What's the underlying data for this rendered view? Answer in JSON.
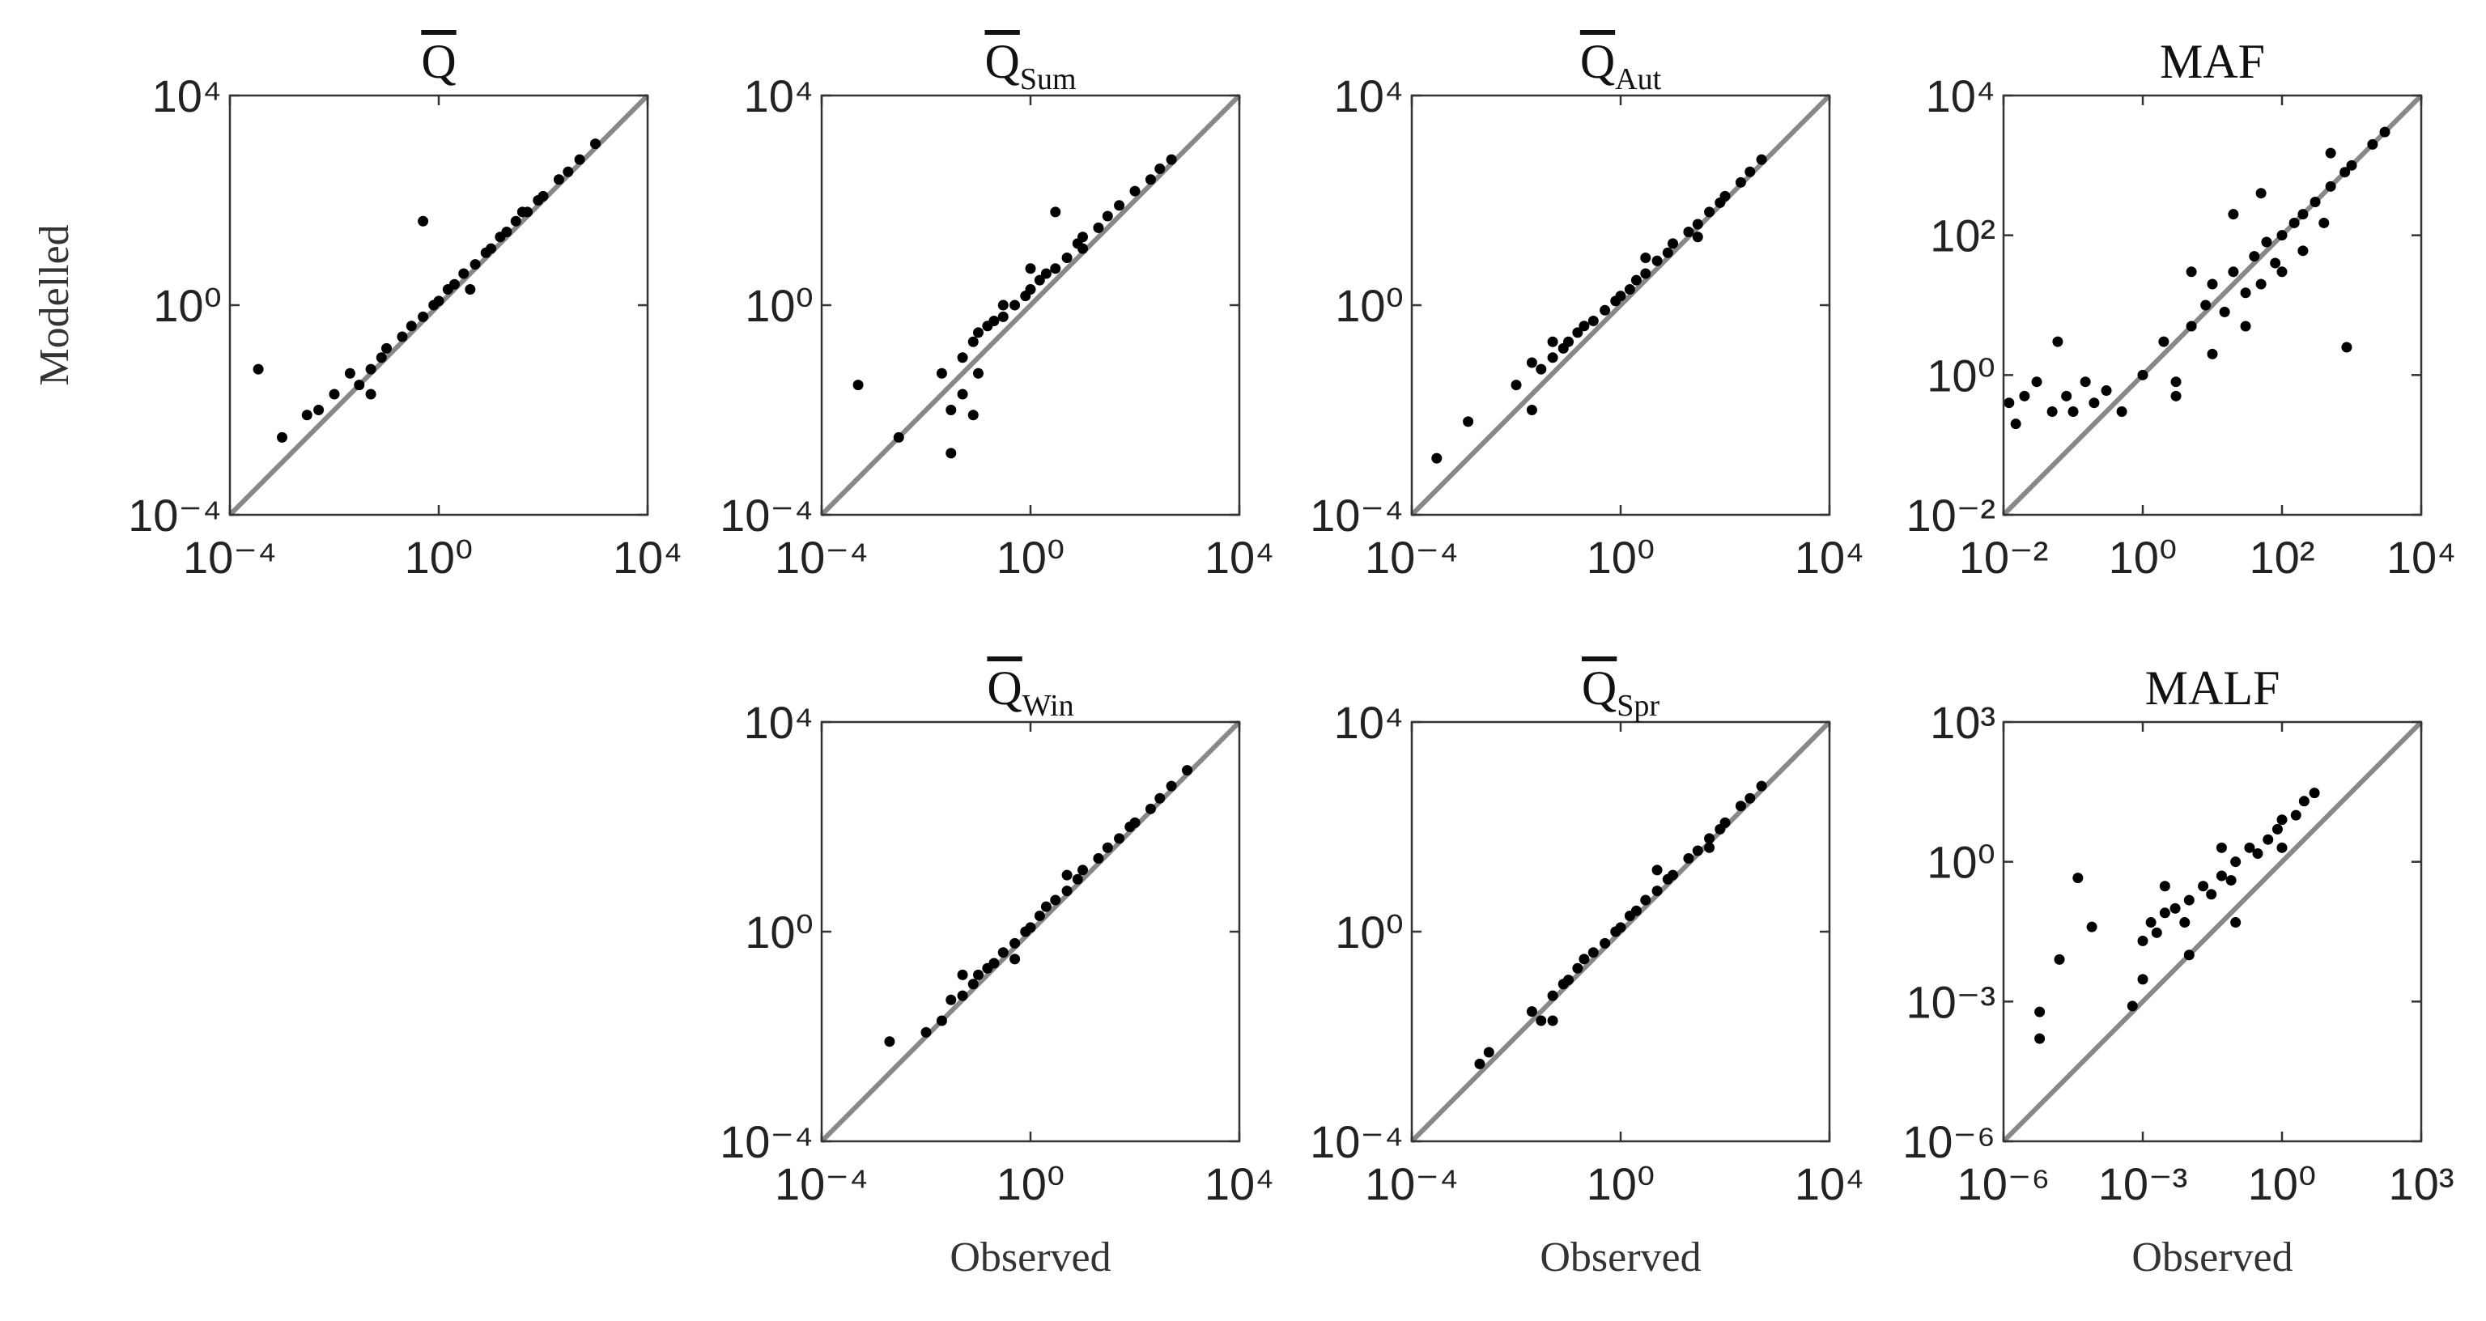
{
  "chart_data": [
    {
      "type": "scatter",
      "title": "Q",
      "overline": true,
      "ylabel": "Modelled",
      "log_scale": true,
      "color": "#000000",
      "line_color": "#888888",
      "xlim": [
        0.0001,
        10000.0
      ],
      "ylim": [
        0.0001,
        10000.0
      ],
      "xticks": [
        {
          "value": 0.0001,
          "label": "10⁻⁴"
        },
        {
          "value": 1,
          "label": "10⁰"
        },
        {
          "value": 10000.0,
          "label": "10⁴"
        }
      ],
      "yticks": [
        {
          "value": 0.0001,
          "label": "10⁻⁴"
        },
        {
          "value": 1,
          "label": "10⁰"
        },
        {
          "value": 10000.0,
          "label": "10⁴"
        }
      ],
      "x": [
        0.00035,
        0.001,
        0.003,
        0.005,
        0.01,
        0.02,
        0.03,
        0.05,
        0.08,
        0.1,
        0.2,
        0.3,
        0.5,
        0.8,
        1,
        1.5,
        2,
        3,
        5,
        8,
        10,
        15,
        20,
        30,
        50,
        80,
        100,
        200,
        300,
        500,
        1000,
        0.5,
        0.05,
        4,
        40
      ],
      "values": [
        0.06,
        0.003,
        0.008,
        0.01,
        0.02,
        0.05,
        0.03,
        0.06,
        0.1,
        0.15,
        0.25,
        0.4,
        0.6,
        1,
        1.2,
        2,
        2.5,
        4,
        6,
        10,
        12,
        20,
        25,
        40,
        60,
        100,
        120,
        250,
        350,
        600,
        1200,
        40,
        0.02,
        2,
        60
      ]
    },
    {
      "type": "scatter",
      "title": "Q",
      "title_subscript": "Sum",
      "overline": true,
      "log_scale": true,
      "color": "#000000",
      "line_color": "#888888",
      "xlim": [
        0.0001,
        10000.0
      ],
      "ylim": [
        0.0001,
        10000.0
      ],
      "xticks": [
        {
          "value": 0.0001,
          "label": "10⁻⁴"
        },
        {
          "value": 1,
          "label": "10⁰"
        },
        {
          "value": 10000.0,
          "label": "10⁴"
        }
      ],
      "yticks": [
        {
          "value": 0.0001,
          "label": "10⁻⁴"
        },
        {
          "value": 1,
          "label": "10⁰"
        },
        {
          "value": 10000.0,
          "label": "10⁴"
        }
      ],
      "x": [
        0.0005,
        0.003,
        0.02,
        0.03,
        0.05,
        0.05,
        0.08,
        0.1,
        0.1,
        0.15,
        0.2,
        0.3,
        0.3,
        0.5,
        0.8,
        1,
        1.5,
        2,
        3,
        5,
        8,
        10,
        20,
        30,
        50,
        100,
        200,
        300,
        500,
        3,
        0.03,
        0.08,
        1,
        10
      ],
      "values": [
        0.03,
        0.003,
        0.05,
        0.01,
        0.1,
        0.02,
        0.2,
        0.3,
        0.05,
        0.4,
        0.5,
        0.6,
        1,
        1,
        1.5,
        2,
        3,
        4,
        5,
        8,
        15,
        20,
        30,
        50,
        80,
        150,
        250,
        400,
        600,
        60,
        0.0015,
        0.008,
        5,
        12
      ]
    },
    {
      "type": "scatter",
      "title": "Q",
      "title_subscript": "Aut",
      "overline": true,
      "log_scale": true,
      "color": "#000000",
      "line_color": "#888888",
      "xlim": [
        0.0001,
        10000.0
      ],
      "ylim": [
        0.0001,
        10000.0
      ],
      "xticks": [
        {
          "value": 0.0001,
          "label": "10⁻⁴"
        },
        {
          "value": 1,
          "label": "10⁰"
        },
        {
          "value": 10000.0,
          "label": "10⁴"
        }
      ],
      "yticks": [
        {
          "value": 0.0001,
          "label": "10⁻⁴"
        },
        {
          "value": 1,
          "label": "10⁰"
        },
        {
          "value": 10000.0,
          "label": "10⁴"
        }
      ],
      "x": [
        0.0003,
        0.0012,
        0.01,
        0.02,
        0.03,
        0.05,
        0.08,
        0.1,
        0.15,
        0.2,
        0.3,
        0.5,
        0.8,
        1,
        1.5,
        2,
        3,
        5,
        8,
        10,
        20,
        30,
        50,
        80,
        100,
        200,
        300,
        500,
        0.02,
        0.05,
        3,
        30
      ],
      "values": [
        0.0012,
        0.006,
        0.03,
        0.08,
        0.06,
        0.1,
        0.15,
        0.2,
        0.3,
        0.4,
        0.5,
        0.8,
        1.2,
        1.5,
        2,
        3,
        4,
        7,
        10,
        15,
        25,
        35,
        60,
        90,
        120,
        220,
        350,
        600,
        0.01,
        0.2,
        8,
        20
      ]
    },
    {
      "type": "scatter",
      "title": "MAF",
      "overline": false,
      "log_scale": true,
      "color": "#000000",
      "line_color": "#888888",
      "xlim": [
        0.01,
        10000.0
      ],
      "ylim": [
        0.01,
        10000.0
      ],
      "xticks": [
        {
          "value": 0.01,
          "label": "10⁻²"
        },
        {
          "value": 1,
          "label": "10⁰"
        },
        {
          "value": 100,
          "label": "10²"
        },
        {
          "value": 10000.0,
          "label": "10⁴"
        }
      ],
      "yticks": [
        {
          "value": 0.01,
          "label": "10⁻²"
        },
        {
          "value": 1,
          "label": "10⁰"
        },
        {
          "value": 100,
          "label": "10²"
        },
        {
          "value": 10000.0,
          "label": "10⁴"
        }
      ],
      "x": [
        0.012,
        0.015,
        0.02,
        0.03,
        0.05,
        0.08,
        0.1,
        0.15,
        0.2,
        0.3,
        0.5,
        1,
        2,
        3,
        5,
        8,
        10,
        15,
        20,
        30,
        40,
        50,
        60,
        80,
        100,
        100,
        150,
        200,
        300,
        400,
        500,
        800,
        1000,
        2000,
        3000,
        850,
        5,
        20,
        50,
        200,
        30,
        10,
        3,
        0.06,
        500
      ],
      "values": [
        0.4,
        0.2,
        0.5,
        0.8,
        0.3,
        0.5,
        0.3,
        0.8,
        0.4,
        0.6,
        0.3,
        1,
        3,
        0.8,
        5,
        10,
        20,
        8,
        30,
        15,
        50,
        20,
        80,
        40,
        100,
        30,
        150,
        200,
        300,
        150,
        500,
        800,
        1000,
        2000,
        3000,
        2.5,
        30,
        200,
        400,
        60,
        5,
        2,
        0.5,
        3,
        1500
      ]
    },
    {
      "type": "scatter",
      "title": "Q",
      "title_subscript": "Win",
      "overline": true,
      "xlabel": "Observed",
      "log_scale": true,
      "color": "#000000",
      "line_color": "#888888",
      "xlim": [
        0.0001,
        10000.0
      ],
      "ylim": [
        0.0001,
        10000.0
      ],
      "xticks": [
        {
          "value": 0.0001,
          "label": "10⁻⁴"
        },
        {
          "value": 1,
          "label": "10⁰"
        },
        {
          "value": 10000.0,
          "label": "10⁴"
        }
      ],
      "yticks": [
        {
          "value": 0.0001,
          "label": "10⁻⁴"
        },
        {
          "value": 1,
          "label": "10⁰"
        },
        {
          "value": 10000.0,
          "label": "10⁴"
        }
      ],
      "x": [
        0.002,
        0.01,
        0.02,
        0.03,
        0.05,
        0.08,
        0.1,
        0.15,
        0.2,
        0.3,
        0.5,
        0.8,
        1,
        1.5,
        2,
        3,
        5,
        8,
        10,
        20,
        30,
        50,
        80,
        100,
        200,
        300,
        500,
        1000,
        0.05,
        0.5,
        5
      ],
      "values": [
        0.008,
        0.012,
        0.02,
        0.05,
        0.06,
        0.1,
        0.15,
        0.2,
        0.25,
        0.4,
        0.6,
        1,
        1.2,
        2,
        3,
        4,
        6,
        10,
        15,
        25,
        40,
        60,
        100,
        120,
        220,
        350,
        600,
        1200,
        0.15,
        0.3,
        12
      ]
    },
    {
      "type": "scatter",
      "title": "Q",
      "title_subscript": "Spr",
      "overline": true,
      "xlabel": "Observed",
      "log_scale": true,
      "color": "#000000",
      "line_color": "#888888",
      "xlim": [
        0.0001,
        10000.0
      ],
      "ylim": [
        0.0001,
        10000.0
      ],
      "xticks": [
        {
          "value": 0.0001,
          "label": "10⁻⁴"
        },
        {
          "value": 1,
          "label": "10⁰"
        },
        {
          "value": 10000.0,
          "label": "10⁴"
        }
      ],
      "yticks": [
        {
          "value": 0.0001,
          "label": "10⁻⁴"
        },
        {
          "value": 1,
          "label": "10⁰"
        },
        {
          "value": 10000.0,
          "label": "10⁴"
        }
      ],
      "x": [
        0.002,
        0.003,
        0.02,
        0.03,
        0.05,
        0.08,
        0.1,
        0.15,
        0.2,
        0.3,
        0.5,
        0.8,
        1,
        1.5,
        2,
        3,
        5,
        8,
        10,
        20,
        30,
        50,
        80,
        100,
        200,
        300,
        500,
        0.05,
        5,
        50
      ],
      "values": [
        0.003,
        0.005,
        0.03,
        0.02,
        0.06,
        0.1,
        0.12,
        0.2,
        0.3,
        0.4,
        0.6,
        1,
        1.2,
        2,
        2.5,
        4,
        6,
        10,
        12,
        25,
        35,
        60,
        90,
        120,
        250,
        350,
        600,
        0.02,
        15,
        40
      ]
    },
    {
      "type": "scatter",
      "title": "MALF",
      "overline": false,
      "xlabel": "Observed",
      "log_scale": true,
      "color": "#000000",
      "line_color": "#888888",
      "xlim": [
        1e-06,
        1000.0
      ],
      "ylim": [
        1e-06,
        1000.0
      ],
      "xticks": [
        {
          "value": 1e-06,
          "label": "10⁻⁶"
        },
        {
          "value": 0.001,
          "label": "10⁻³"
        },
        {
          "value": 1,
          "label": "10⁰"
        },
        {
          "value": 1000.0,
          "label": "10³"
        }
      ],
      "yticks": [
        {
          "value": 1e-06,
          "label": "10⁻⁶"
        },
        {
          "value": 0.001,
          "label": "10⁻³"
        },
        {
          "value": 1,
          "label": "10⁰"
        },
        {
          "value": 1000.0,
          "label": "10³"
        }
      ],
      "x": [
        6e-06,
        6e-06,
        1.6e-05,
        4e-05,
        8e-05,
        0.0006,
        0.001,
        0.0015,
        0.002,
        0.003,
        0.005,
        0.008,
        0.01,
        0.02,
        0.03,
        0.05,
        0.08,
        0.1,
        0.2,
        0.3,
        0.5,
        0.8,
        1,
        2,
        3,
        5,
        0.001,
        0.01,
        0.1,
        1,
        0.003,
        0.05
      ],
      "values": [
        0.0006,
        0.00016,
        0.008,
        0.45,
        0.04,
        0.0008,
        0.02,
        0.05,
        0.03,
        0.08,
        0.1,
        0.05,
        0.15,
        0.3,
        0.2,
        0.5,
        0.4,
        1,
        2,
        1.5,
        3,
        5,
        8,
        10,
        20,
        30,
        0.003,
        0.01,
        0.05,
        2,
        0.3,
        2
      ]
    }
  ]
}
